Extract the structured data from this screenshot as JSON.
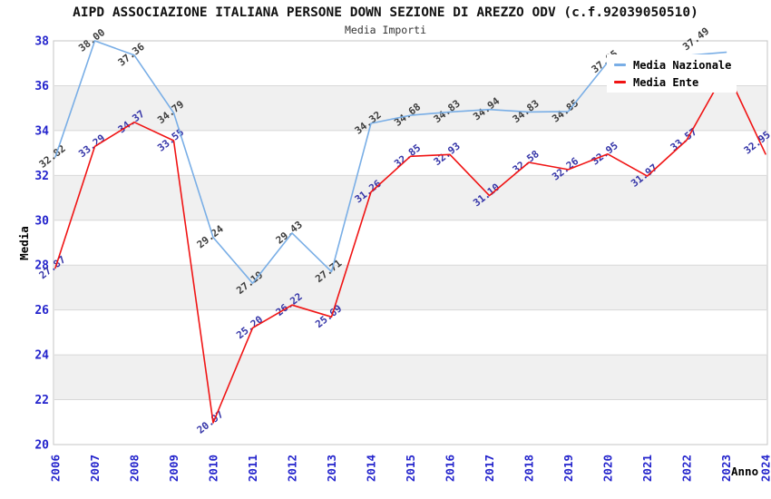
{
  "header": {
    "title": "AIPD ASSOCIAZIONE ITALIANA PERSONE DOWN SEZIONE DI AREZZO ODV (c.f.92039050510)",
    "subtitle": "Media Importi"
  },
  "legend": {
    "items": [
      {
        "label": "Media Nazionale",
        "color": "#79aee6"
      },
      {
        "label": "Media Ente",
        "color": "#f01414"
      }
    ]
  },
  "axes": {
    "xlabel": "Anno",
    "ylabel": "Media",
    "tick_color": "#2323cc"
  },
  "chart_data": {
    "type": "line",
    "title": "AIPD ASSOCIAZIONE ITALIANA PERSONE DOWN SEZIONE DI AREZZO ODV (c.f.92039050510)",
    "subtitle": "Media Importi",
    "xlabel": "Anno",
    "ylabel": "Media",
    "x": [
      "2006",
      "2007",
      "2008",
      "2009",
      "2010",
      "2011",
      "2012",
      "2013",
      "2014",
      "2015",
      "2016",
      "2017",
      "2018",
      "2019",
      "2020",
      "2021",
      "2022",
      "2023",
      "2024"
    ],
    "yticks": [
      20,
      22,
      24,
      26,
      28,
      30,
      32,
      34,
      36,
      38
    ],
    "ylim": [
      20,
      38
    ],
    "grid": true,
    "shaded_bands": [
      [
        34,
        36
      ],
      [
        30,
        32
      ],
      [
        26,
        28
      ],
      [
        22,
        24
      ]
    ],
    "legend_position": "top-right",
    "series": [
      {
        "name": "Media Nazionale",
        "color": "#79aee6",
        "label_color": "#3d3d3d",
        "values": [
          32.82,
          38.0,
          37.36,
          34.79,
          29.24,
          27.19,
          29.43,
          27.71,
          34.32,
          34.68,
          34.83,
          34.94,
          34.83,
          34.85,
          37.05,
          null,
          null,
          37.49,
          null
        ],
        "labels": [
          "32.82",
          "38.00",
          "37.36",
          "34.79",
          "29.24",
          "27.19",
          "29.43",
          "27.71",
          "34.32",
          "34.68",
          "34.83",
          "34.94",
          "34.83",
          "34.85",
          "37.05",
          "",
          "",
          "37.49",
          ""
        ]
      },
      {
        "name": "Media Ente",
        "color": "#f01414",
        "label_color": "#3535a8",
        "values": [
          27.87,
          33.29,
          34.37,
          33.55,
          20.97,
          25.2,
          26.22,
          25.69,
          31.26,
          32.85,
          32.93,
          31.1,
          32.58,
          32.26,
          32.95,
          31.97,
          33.57,
          36.7,
          32.95
        ],
        "labels": [
          "27.87",
          "33.29",
          "34.37",
          "33.55",
          "20.97",
          "25.20",
          "26.22",
          "25.69",
          "31.26",
          "32.85",
          "32.93",
          "31.10",
          "32.58",
          "32.26",
          "32.95",
          "31.97",
          "33.57",
          "",
          "32.95"
        ]
      }
    ],
    "colors": {
      "band_fill": "#f0f0f0",
      "gridline": "#d8d8d8",
      "plot_border": "#c5c5c5"
    }
  }
}
